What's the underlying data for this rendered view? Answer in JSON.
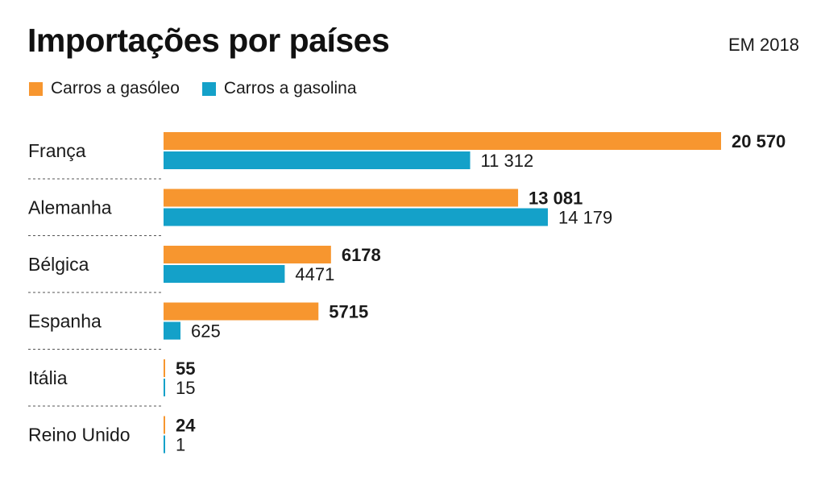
{
  "header": {
    "title": "Importações por países",
    "subtitle": "EM 2018"
  },
  "colors": {
    "diesel": "#f7962f",
    "petrol": "#14a1c9",
    "divider": "#555555",
    "text": "#1a1a1a"
  },
  "chart_data": {
    "type": "bar",
    "orientation": "horizontal",
    "title": "Importações por países",
    "subtitle": "EM 2018",
    "legend_position": "top-left",
    "grid": false,
    "categories": [
      "França",
      "Alemanha",
      "Bélgica",
      "Espanha",
      "Itália",
      "Reino Unido"
    ],
    "series": [
      {
        "name": "Carros a gasóleo",
        "values": [
          20570,
          13081,
          6178,
          5715,
          55,
          24
        ],
        "labels": [
          "20 570",
          "13 081",
          "6178",
          "5715",
          "55",
          "24"
        ]
      },
      {
        "name": "Carros a gasolina",
        "values": [
          11312,
          14179,
          4471,
          625,
          15,
          1
        ],
        "labels": [
          "11 312",
          "14 179",
          "4471",
          "625",
          "15",
          "1"
        ]
      }
    ],
    "xlim": [
      0,
      20570
    ]
  }
}
